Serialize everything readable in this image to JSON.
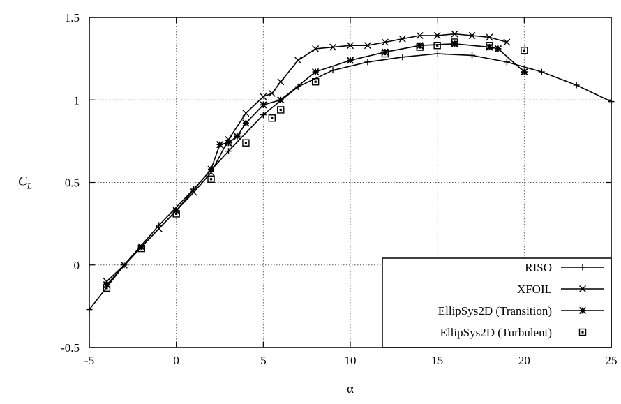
{
  "chart_data": {
    "type": "line",
    "xlabel": "α",
    "ylabel": "C",
    "ylabel_sub": "L",
    "xlim": [
      -5,
      25
    ],
    "ylim": [
      -0.5,
      1.5
    ],
    "xticks": [
      -5,
      0,
      5,
      10,
      15,
      20,
      25
    ],
    "xtick_labels": [
      "-5",
      "0",
      "5",
      "10",
      "15",
      "20",
      "25"
    ],
    "yticks": [
      -0.5,
      0,
      0.5,
      1,
      1.5
    ],
    "ytick_labels": [
      "-0.5",
      "0",
      "0.5",
      "1",
      "1.5"
    ],
    "grid": true,
    "legend_position": "bottom-right",
    "series": [
      {
        "name": "RISO",
        "marker": "plus",
        "line": true,
        "x": [
          -5,
          -3,
          -1,
          1,
          3,
          5,
          7,
          9,
          11,
          13,
          15,
          17,
          19,
          21,
          23,
          25
        ],
        "y": [
          -0.27,
          0.0,
          0.24,
          0.46,
          0.69,
          0.91,
          1.08,
          1.18,
          1.23,
          1.26,
          1.28,
          1.27,
          1.23,
          1.17,
          1.09,
          0.99
        ]
      },
      {
        "name": "XFOIL",
        "marker": "x",
        "line": true,
        "x": [
          -4,
          -3,
          -2,
          -1,
          0,
          1,
          2,
          3,
          4,
          5,
          5.5,
          6,
          7,
          8,
          9,
          10,
          11,
          12,
          13,
          14,
          15,
          16,
          17,
          18,
          19
        ],
        "y": [
          -0.1,
          0.0,
          0.11,
          0.22,
          0.33,
          0.44,
          0.56,
          0.76,
          0.92,
          1.02,
          1.04,
          1.11,
          1.24,
          1.31,
          1.32,
          1.33,
          1.33,
          1.35,
          1.37,
          1.39,
          1.39,
          1.4,
          1.39,
          1.38,
          1.35
        ]
      },
      {
        "name": "EllipSys2D (Transition)",
        "marker": "star",
        "line": true,
        "x": [
          -4,
          -2,
          0,
          2,
          2.5,
          3,
          3.5,
          4,
          5,
          6,
          8,
          10,
          12,
          14,
          16,
          18,
          18.5,
          20
        ],
        "y": [
          -0.12,
          0.11,
          0.33,
          0.58,
          0.73,
          0.74,
          0.78,
          0.86,
          0.97,
          1.0,
          1.17,
          1.24,
          1.29,
          1.33,
          1.34,
          1.32,
          1.31,
          1.17
        ]
      },
      {
        "name": "EllipSys2D (Turbulent)",
        "marker": "square",
        "line": false,
        "x": [
          -4,
          -2,
          0,
          2,
          4,
          5.5,
          6,
          8,
          12,
          14,
          15,
          16,
          18,
          20
        ],
        "y": [
          -0.14,
          0.1,
          0.31,
          0.52,
          0.74,
          0.89,
          0.94,
          1.11,
          1.28,
          1.32,
          1.33,
          1.35,
          1.33,
          1.3
        ]
      }
    ]
  }
}
